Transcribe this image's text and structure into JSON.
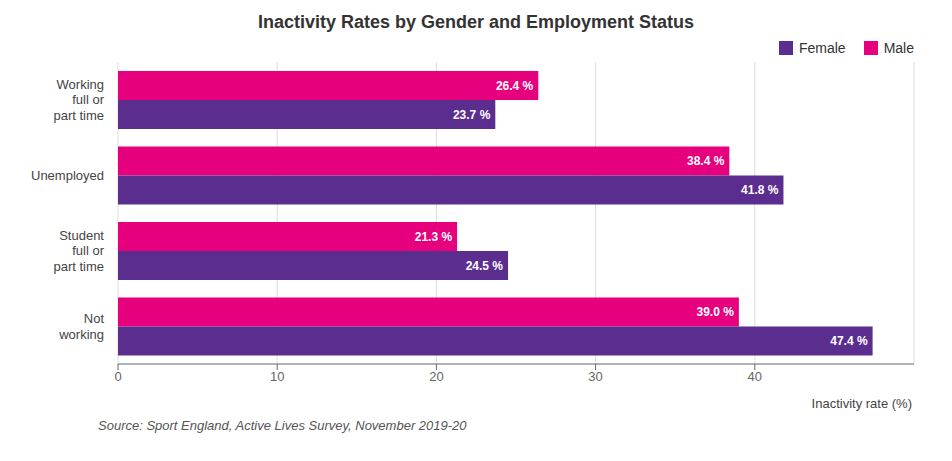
{
  "chart_data": {
    "type": "bar",
    "orientation": "horizontal",
    "title": "Inactivity Rates by Gender and Employment Status",
    "categories": [
      "Working\nfull or\npart time",
      "Unemployed",
      "Student\nfull or\npart time",
      "Not\nworking"
    ],
    "series": [
      {
        "name": "Female",
        "color": "#5B2D8E",
        "values": [
          23.7,
          41.8,
          24.5,
          47.4
        ],
        "value_labels": [
          "23.7 %",
          "41.8 %",
          "24.5 %",
          "47.4 %"
        ]
      },
      {
        "name": "Male",
        "color": "#E6007E",
        "values": [
          26.4,
          38.4,
          21.3,
          39.0
        ],
        "value_labels": [
          "26.4 %",
          "38.4 %",
          "21.3 %",
          "39.0 %"
        ]
      }
    ],
    "xlabel": "Inactivity rate (%)",
    "xlim": [
      0,
      50
    ],
    "xticks": [
      0,
      10,
      20,
      30,
      40
    ],
    "grid": true,
    "legend": "upper right",
    "data_labels": true,
    "annotations": [
      "Source: Sport England, Active Lives Survey, November 2019-20"
    ]
  }
}
